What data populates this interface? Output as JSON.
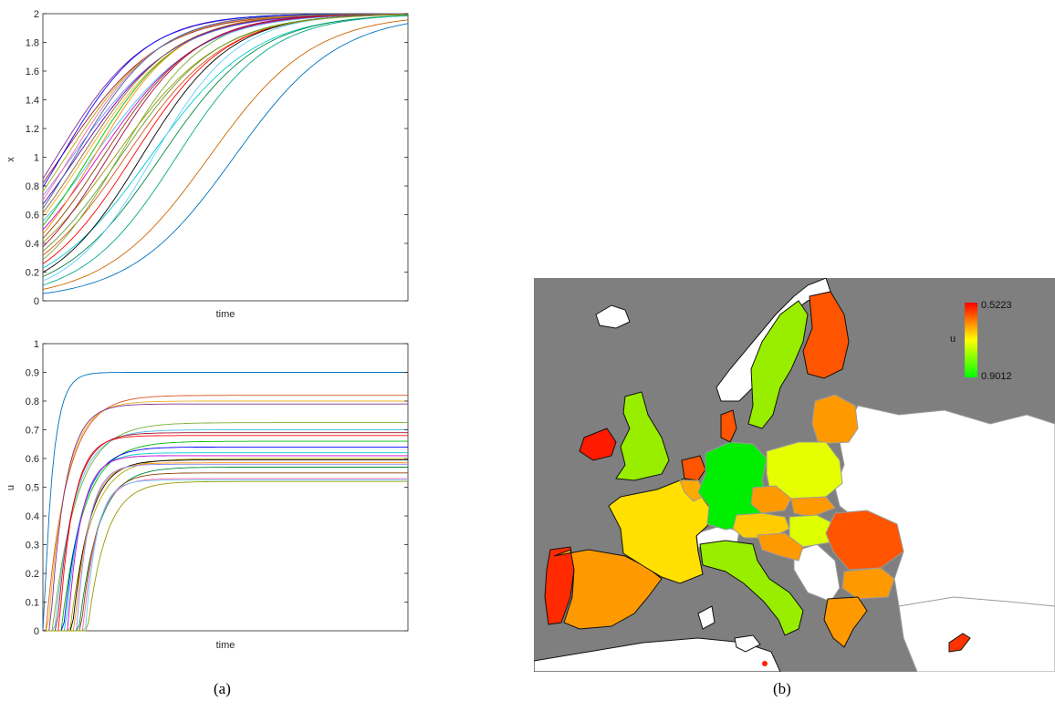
{
  "panels": {
    "a": "(a)",
    "b": "(b)"
  },
  "colors": {
    "sea": "#7f7f7f",
    "landInactive": "#ffffff",
    "border": "#9a9a9a",
    "coast": "#111111",
    "scaleHigh": "#ff0000",
    "scaleMid": "#ffff00",
    "scaleLow": "#00ff00"
  },
  "chart_data": [
    {
      "type": "line",
      "panel": "(a) top",
      "xlabel": "time",
      "ylabel": "x",
      "ylim": [
        0,
        2
      ],
      "yticks": [
        "0",
        "0.2",
        "0.4",
        "0.6",
        "0.8",
        "1",
        "1.2",
        "1.4",
        "1.6",
        "1.8",
        "2"
      ],
      "grid": false,
      "description_values": {
        "initial_x_range": [
          0.05,
          0.85
        ],
        "final_x": 2,
        "series_count": 28
      }
    },
    {
      "type": "line",
      "panel": "(a) bottom",
      "xlabel": "time",
      "ylabel": "u",
      "ylim": [
        0,
        1
      ],
      "yticks": [
        "0",
        "0.1",
        "0.2",
        "0.3",
        "0.4",
        "0.5",
        "0.6",
        "0.7",
        "0.8",
        "0.9",
        "1"
      ],
      "grid": false,
      "final_u_values": [
        0.9,
        0.82,
        0.8,
        0.79,
        0.725,
        0.7,
        0.69,
        0.68,
        0.66,
        0.64,
        0.62,
        0.61,
        0.6,
        0.595,
        0.585,
        0.58,
        0.57,
        0.55,
        0.53,
        0.525,
        0.52
      ]
    },
    {
      "type": "heatmap",
      "panel": "(b)",
      "colorbar_label": "u",
      "colorbar_max_label": "0.5223",
      "colorbar_min_label": "0.9012",
      "regions": [
        {
          "name": "Portugal",
          "color": "#ff2a00"
        },
        {
          "name": "Spain",
          "color": "#ff9900"
        },
        {
          "name": "France",
          "color": "#ffe000"
        },
        {
          "name": "Ireland",
          "color": "#ff1a00"
        },
        {
          "name": "United Kingdom",
          "color": "#99ee00"
        },
        {
          "name": "Netherlands",
          "color": "#ff5500"
        },
        {
          "name": "Belgium",
          "color": "#ffaa00"
        },
        {
          "name": "Germany",
          "color": "#00ee00"
        },
        {
          "name": "Denmark",
          "color": "#ff5500"
        },
        {
          "name": "Sweden",
          "color": "#99ee00"
        },
        {
          "name": "Finland",
          "color": "#ff5500"
        },
        {
          "name": "Baltics",
          "color": "#ff9900"
        },
        {
          "name": "Poland",
          "color": "#e6ff00"
        },
        {
          "name": "Czechia",
          "color": "#ff9900"
        },
        {
          "name": "Slovakia",
          "color": "#ff9900"
        },
        {
          "name": "Austria",
          "color": "#ffcc00"
        },
        {
          "name": "Hungary",
          "color": "#ddff00"
        },
        {
          "name": "Italy",
          "color": "#99ee00"
        },
        {
          "name": "Slovenia/Croatia",
          "color": "#ff9900"
        },
        {
          "name": "Romania",
          "color": "#ff5500"
        },
        {
          "name": "Bulgaria",
          "color": "#ff9900"
        },
        {
          "name": "Greece",
          "color": "#ff9900"
        },
        {
          "name": "Cyprus",
          "color": "#ff3300"
        },
        {
          "name": "Malta",
          "color": "#ff2200"
        }
      ]
    }
  ]
}
